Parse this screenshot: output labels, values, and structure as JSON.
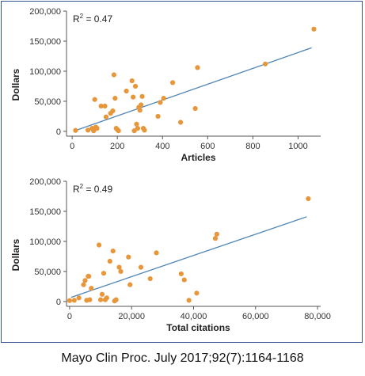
{
  "chart_data": [
    {
      "type": "scatter",
      "title": "",
      "xlabel": "Articles",
      "ylabel": "Dollars",
      "annotation_prefix": "R",
      "annotation_sup": "2",
      "annotation_value": " = 0.47",
      "xlim": [
        -25,
        1100
      ],
      "ylim": [
        -8000,
        200000
      ],
      "xticks": [
        0,
        200,
        400,
        600,
        800,
        1000
      ],
      "xtick_labels": [
        "0",
        "200",
        "400",
        "600",
        "800",
        "1000"
      ],
      "yticks": [
        0,
        50000,
        100000,
        150000,
        200000
      ],
      "ytick_labels": [
        "0",
        "50,000",
        "100,000",
        "150,000",
        "200,000"
      ],
      "marker_color": "#e8963a",
      "line_color": "#4f86b5",
      "trend": [
        [
          20,
          2000
        ],
        [
          1060,
          139000
        ]
      ],
      "x": [
        15,
        70,
        88,
        95,
        100,
        105,
        110,
        128,
        145,
        150,
        170,
        180,
        185,
        190,
        195,
        200,
        205,
        240,
        265,
        270,
        275,
        280,
        285,
        290,
        295,
        300,
        305,
        310,
        315,
        320,
        380,
        390,
        405,
        445,
        480,
        545,
        555,
        855,
        1070
      ],
      "y": [
        1500,
        2000,
        5000,
        1000,
        53000,
        7000,
        5000,
        42000,
        42000,
        24000,
        30000,
        34000,
        94000,
        55000,
        5000,
        3000,
        1000,
        67000,
        84000,
        57000,
        1000,
        75000,
        12000,
        5000,
        40000,
        35000,
        44000,
        58000,
        5000,
        2000,
        25000,
        48000,
        55000,
        81000,
        15000,
        38000,
        106000,
        112000,
        170000
      ]
    },
    {
      "type": "scatter",
      "title": "",
      "xlabel": "Total citations",
      "ylabel": "Dollars",
      "annotation_prefix": "R",
      "annotation_sup": "2",
      "annotation_value": " = 0.49",
      "xlim": [
        -1000,
        81000
      ],
      "ylim": [
        -8000,
        200000
      ],
      "xticks": [
        0,
        20000,
        40000,
        60000,
        80000
      ],
      "xtick_labels": [
        "0",
        "20,000",
        "40,000",
        "60,000",
        "80,000"
      ],
      "yticks": [
        0,
        50000,
        100000,
        150000,
        200000
      ],
      "ytick_labels": [
        "0",
        "50,000",
        "100,000",
        "150,000",
        "200,000"
      ],
      "marker_color": "#e8963a",
      "line_color": "#4f86b5",
      "trend": [
        [
          500,
          7000
        ],
        [
          76500,
          141000
        ]
      ],
      "x": [
        0,
        1500,
        3000,
        4500,
        5000,
        5500,
        6000,
        6200,
        6500,
        7000,
        9500,
        10000,
        10500,
        11000,
        11500,
        12000,
        13000,
        14000,
        14500,
        15000,
        16000,
        16500,
        19000,
        19500,
        23000,
        26000,
        28000,
        36000,
        37000,
        38500,
        41000,
        47000,
        47500,
        77000
      ],
      "y": [
        1500,
        2000,
        6000,
        28000,
        35000,
        2000,
        42000,
        42000,
        3000,
        22000,
        94000,
        3000,
        12000,
        47000,
        3000,
        6000,
        67000,
        84000,
        1000,
        3000,
        57000,
        50000,
        74000,
        28000,
        57000,
        38000,
        81000,
        46000,
        36000,
        2000,
        14000,
        105000,
        112000,
        171000
      ]
    }
  ],
  "caption": "Mayo Clin Proc.  July 2017;92(7):1164-1168"
}
